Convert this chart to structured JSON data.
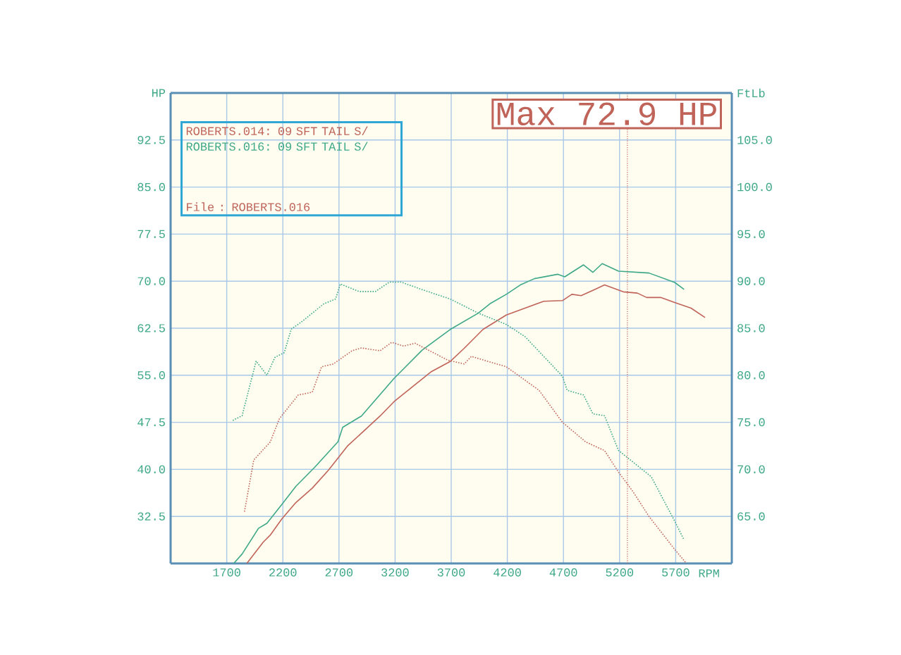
{
  "chart_data": {
    "type": "line",
    "xlabel": "RPM",
    "ylabel": "HP",
    "y2label": "FtLb",
    "xlim": [
      1200,
      6200
    ],
    "ylim": [
      25,
      100
    ],
    "y2lim": [
      60,
      110
    ],
    "xticks": [
      1700,
      2200,
      2700,
      3200,
      3700,
      4200,
      4700,
      5200,
      5700
    ],
    "yticks": [
      32.5,
      {
        "value": 40,
        "label": "40.0"
      },
      47.5,
      {
        "value": 55,
        "label": "55.0"
      },
      62.5,
      {
        "value": 70,
        "label": "70.0"
      },
      77.5,
      {
        "value": 85,
        "label": "85.0"
      },
      92.5
    ],
    "y2ticks": [
      {
        "value": 65,
        "label": "65.0"
      },
      {
        "value": 70,
        "label": "70.0"
      },
      {
        "value": 75,
        "label": "75.0"
      },
      {
        "value": 80,
        "label": "80.0"
      },
      {
        "value": 85,
        "label": "85.0"
      },
      {
        "value": 90,
        "label": "90.0"
      },
      {
        "value": 95,
        "label": "95.0"
      },
      {
        "value": 100,
        "label": "100.0"
      },
      {
        "value": 105,
        "label": "105.0"
      }
    ],
    "grid": true,
    "legend": "top left",
    "marker": "none",
    "series": [
      {
        "name": "ROBERTS.014: 09 SFT TAIL S/",
        "color": "#c0645a",
        "line_style": "solid",
        "x": [
          1879,
          2025,
          2087,
          2191,
          2316,
          2462,
          2608,
          2775,
          3066,
          3191,
          3525,
          3691,
          3816,
          3983,
          4191,
          4525,
          4691,
          4775,
          4858,
          4983,
          5066,
          5233,
          5358,
          5441,
          5566,
          5691,
          5837,
          5962
        ],
        "values": [
          25.0,
          28.4,
          29.5,
          32.1,
          34.7,
          37.0,
          39.9,
          43.7,
          48.5,
          50.8,
          55.6,
          57.2,
          59.3,
          62.3,
          64.6,
          66.8,
          66.9,
          67.9,
          67.7,
          68.7,
          69.4,
          68.3,
          68.1,
          67.4,
          67.4,
          66.6,
          65.7,
          64.2
        ]
      },
      {
        "name": "ROBERTS.016: 09 SFT TAIL S/",
        "color": "#3ea888",
        "line_style": "solid",
        "x": [
          1762,
          1837,
          1983,
          2058,
          2191,
          2316,
          2482,
          2691,
          2733,
          2900,
          3191,
          3441,
          3691,
          3941,
          4045,
          4191,
          4316,
          4441,
          4650,
          4712,
          4879,
          4962,
          5045,
          5191,
          5462,
          5691,
          5775
        ],
        "values": [
          25.0,
          26.5,
          30.6,
          31.4,
          34.4,
          37.3,
          40.3,
          44.4,
          46.7,
          48.5,
          54.5,
          59.0,
          62.3,
          64.9,
          66.4,
          67.9,
          69.4,
          70.4,
          71.1,
          70.7,
          72.6,
          71.4,
          72.8,
          71.6,
          71.3,
          69.8,
          68.7
        ]
      },
      {
        "color": "#c0645a",
        "line_style": "dotted",
        "axis": "y2",
        "x": [
          1858,
          1941,
          2087,
          2170,
          2337,
          2462,
          2545,
          2650,
          2816,
          2900,
          3066,
          3170,
          3275,
          3379,
          3670,
          3816,
          3879,
          4191,
          4483,
          4691,
          4900,
          5066,
          5191,
          5316,
          5462,
          5691,
          5795
        ],
        "values": [
          65.5,
          71.0,
          72.9,
          75.4,
          77.9,
          78.2,
          80.9,
          81.2,
          82.6,
          82.9,
          82.6,
          83.5,
          83.1,
          83.4,
          81.6,
          81.2,
          82.0,
          80.9,
          78.4,
          75.0,
          72.9,
          72.0,
          69.7,
          67.7,
          65.0,
          61.5,
          60.0
        ]
      },
      {
        "color": "#3ea888",
        "line_style": "dotted",
        "axis": "y2",
        "x": [
          1754,
          1837,
          1962,
          2058,
          2129,
          2212,
          2275,
          2358,
          2566,
          2670,
          2712,
          2879,
          3025,
          3150,
          3254,
          3441,
          3691,
          3941,
          4191,
          4358,
          4691,
          4733,
          4879,
          4962,
          5066,
          5191,
          5483,
          5691,
          5775
        ],
        "values": [
          75.2,
          75.7,
          81.5,
          80.0,
          81.9,
          82.4,
          84.9,
          85.6,
          87.6,
          88.1,
          89.7,
          88.9,
          88.9,
          89.9,
          89.9,
          89.1,
          88.1,
          86.6,
          85.4,
          84.1,
          79.9,
          78.4,
          77.9,
          75.9,
          75.7,
          72.0,
          69.2,
          64.5,
          62.5
        ]
      }
    ],
    "ref_lines": [
      {
        "axis": "x",
        "value": 5270,
        "color": "#c0645a",
        "line_style": "dotted"
      }
    ],
    "annotations": [
      "File    : ROBERTS.016",
      "Max 72.9 HP"
    ]
  }
}
